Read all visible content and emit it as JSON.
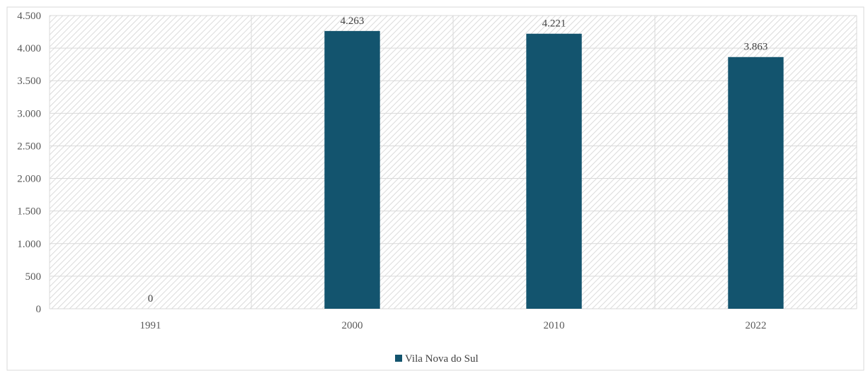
{
  "chart_data": {
    "type": "bar",
    "title": "",
    "xlabel": "",
    "ylabel": "",
    "categories": [
      "1991",
      "2000",
      "2010",
      "2022"
    ],
    "series": [
      {
        "name": "Vila Nova do Sul",
        "values": [
          0,
          4263,
          4221,
          3863
        ],
        "data_labels": [
          "0",
          "4.263",
          "4.221",
          "3.863"
        ],
        "color": "#13546E"
      }
    ],
    "ylim": [
      0,
      4500
    ],
    "yticks": [
      0,
      500,
      1000,
      1500,
      2000,
      2500,
      3000,
      3500,
      4000,
      4500
    ],
    "ytick_labels": [
      "0",
      "500",
      "1.000",
      "1.500",
      "2.000",
      "2.500",
      "3.000",
      "3.500",
      "4.000",
      "4.500"
    ],
    "grid": true,
    "legend_position": "bottom",
    "colors": {
      "bar": "#13546E",
      "grid": "#D9D9D9",
      "hatch": "#D0D0D0"
    }
  }
}
